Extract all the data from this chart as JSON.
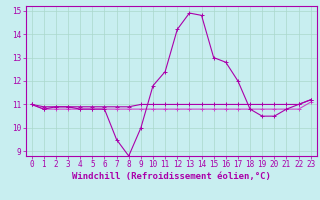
{
  "title": "",
  "xlabel": "Windchill (Refroidissement éolien,°C)",
  "ylabel": "",
  "bg_color": "#c8eef0",
  "grid_color": "#aad8cc",
  "line_color": "#aa00aa",
  "line_color2": "#cc44cc",
  "x": [
    0,
    1,
    2,
    3,
    4,
    5,
    6,
    7,
    8,
    9,
    10,
    11,
    12,
    13,
    14,
    15,
    16,
    17,
    18,
    19,
    20,
    21,
    22,
    23
  ],
  "y_main": [
    11.0,
    10.8,
    10.9,
    10.9,
    10.8,
    10.8,
    10.8,
    9.5,
    8.8,
    10.0,
    11.8,
    12.4,
    14.2,
    14.9,
    14.8,
    13.0,
    12.8,
    12.0,
    10.8,
    10.5,
    10.5,
    10.8,
    11.0,
    11.2
  ],
  "y_flat1": [
    11.0,
    10.8,
    10.8,
    10.8,
    10.8,
    10.8,
    10.8,
    10.8,
    10.8,
    10.8,
    10.8,
    10.8,
    10.8,
    10.8,
    10.8,
    10.8,
    10.8,
    10.8,
    10.8,
    10.8,
    10.8,
    10.8,
    10.8,
    11.1
  ],
  "y_flat2": [
    11.0,
    10.9,
    10.9,
    10.9,
    10.9,
    10.9,
    10.9,
    10.9,
    10.9,
    11.0,
    11.0,
    11.0,
    11.0,
    11.0,
    11.0,
    11.0,
    11.0,
    11.0,
    11.0,
    11.0,
    11.0,
    11.0,
    11.0,
    11.2
  ],
  "ylim": [
    9.0,
    15.0
  ],
  "xlim": [
    -0.5,
    23.5
  ],
  "xtick_labels": [
    "0",
    "1",
    "2",
    "3",
    "4",
    "5",
    "6",
    "7",
    "8",
    "9",
    "10",
    "11",
    "12",
    "13",
    "14",
    "15",
    "16",
    "17",
    "18",
    "19",
    "20",
    "21",
    "22",
    "23"
  ],
  "ytick_labels": [
    "9",
    "10",
    "11",
    "12",
    "13",
    "14",
    "15"
  ],
  "yticks": [
    9,
    10,
    11,
    12,
    13,
    14,
    15
  ],
  "marker": "+",
  "markersize": 3,
  "linewidth": 0.8,
  "xlabel_fontsize": 6.5,
  "tick_fontsize": 5.5
}
